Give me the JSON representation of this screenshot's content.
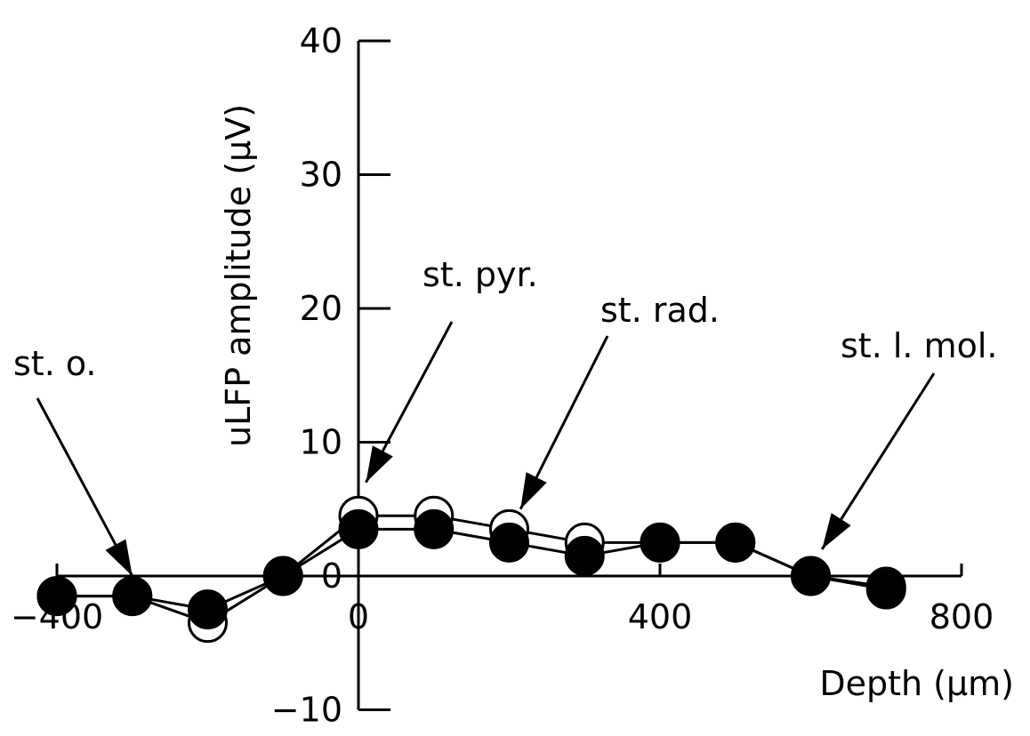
{
  "chart_data": {
    "type": "line",
    "title": "",
    "xlabel": "Depth (µm)",
    "ylabel": "uLFP amplitude (µV)",
    "xlim": [
      -400,
      800
    ],
    "ylim": [
      -10,
      40
    ],
    "x_ticks": [
      -400,
      0,
      400,
      800
    ],
    "x_tick_labels": [
      "−400",
      "0",
      "400",
      "800"
    ],
    "y_ticks": [
      -10,
      0,
      10,
      20,
      30,
      40
    ],
    "y_tick_labels": [
      "−10",
      "0",
      "10",
      "20",
      "30",
      "40"
    ],
    "grid": false,
    "legend": "none",
    "series": [
      {
        "marker": "open-circle",
        "x": [
          -400,
          -300,
          -200,
          -100,
          0,
          100,
          200,
          300,
          400,
          500,
          600,
          700
        ],
        "y": [
          -1.5,
          -1.5,
          -3.5,
          0,
          4.5,
          4.5,
          3.5,
          2.5,
          2.5,
          2.5,
          0,
          -0.8
        ]
      },
      {
        "marker": "filled-circle",
        "x": [
          -400,
          -300,
          -200,
          -100,
          0,
          100,
          200,
          300,
          400,
          500,
          600,
          700
        ],
        "y": [
          -1.5,
          -1.5,
          -2.5,
          0,
          3.5,
          3.5,
          2.5,
          1.5,
          2.5,
          2.5,
          0,
          -1
        ]
      }
    ],
    "annotations": [
      {
        "text": "st. o.",
        "x": -300,
        "y": 0
      },
      {
        "text": "st. pyr.",
        "x": 10,
        "y": 7
      },
      {
        "text": "st. rad.",
        "x": 215,
        "y": 5
      },
      {
        "text": "st. l. mol.",
        "x": 615,
        "y": 2
      }
    ]
  }
}
